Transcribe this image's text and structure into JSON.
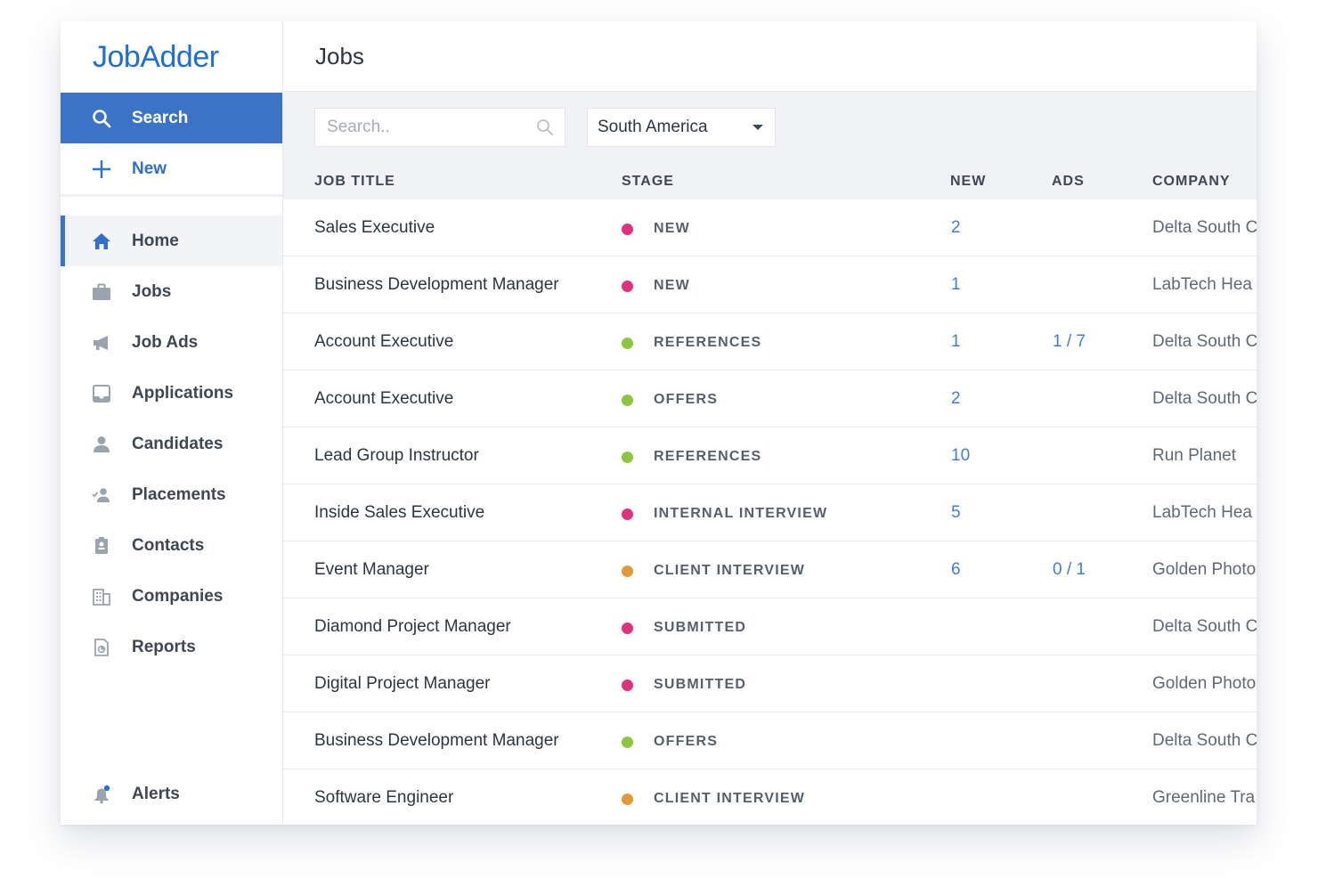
{
  "app": {
    "logo": "JobAdder"
  },
  "sidebar": {
    "search_label": "Search",
    "new_label": "New",
    "items": [
      {
        "label": "Home",
        "icon": "home-icon",
        "active": true
      },
      {
        "label": "Jobs",
        "icon": "briefcase-icon"
      },
      {
        "label": "Job Ads",
        "icon": "megaphone-icon"
      },
      {
        "label": "Applications",
        "icon": "inbox-icon"
      },
      {
        "label": "Candidates",
        "icon": "user-icon"
      },
      {
        "label": "Placements",
        "icon": "user-placed-icon"
      },
      {
        "label": "Contacts",
        "icon": "contact-card-icon"
      },
      {
        "label": "Companies",
        "icon": "building-icon"
      },
      {
        "label": "Reports",
        "icon": "report-icon"
      }
    ],
    "alerts_label": "Alerts"
  },
  "header": {
    "title": "Jobs"
  },
  "toolbar": {
    "search_placeholder": "Search..",
    "region_value": "South America"
  },
  "table": {
    "columns": {
      "job_title": "JOB TITLE",
      "stage": "STAGE",
      "new": "NEW",
      "ads": "ADS",
      "company": "COMPANY"
    },
    "rows": [
      {
        "title": "Sales Executive",
        "stage": "NEW",
        "stage_color": "#e0327d",
        "new": "2",
        "ads": "",
        "company": "Delta South C"
      },
      {
        "title": "Business Development Manager",
        "stage": "NEW",
        "stage_color": "#e0327d",
        "new": "1",
        "ads": "",
        "company": "LabTech Hea"
      },
      {
        "title": "Account Executive",
        "stage": "REFERENCES",
        "stage_color": "#8cc63f",
        "new": "1",
        "ads": "1 / 7",
        "company": "Delta South C"
      },
      {
        "title": "Account Executive",
        "stage": "OFFERS",
        "stage_color": "#8cc63f",
        "new": "2",
        "ads": "",
        "company": "Delta South C"
      },
      {
        "title": "Lead Group Instructor",
        "stage": "REFERENCES",
        "stage_color": "#8cc63f",
        "new": "10",
        "ads": "",
        "company": "Run Planet"
      },
      {
        "title": "Inside Sales Executive",
        "stage": "INTERNAL INTERVIEW",
        "stage_color": "#e0327d",
        "new": "5",
        "ads": "",
        "company": "LabTech Hea"
      },
      {
        "title": "Event Manager",
        "stage": "CLIENT INTERVIEW",
        "stage_color": "#e09a3a",
        "new": "6",
        "ads": "0 / 1",
        "company": "Golden Photo"
      },
      {
        "title": "Diamond Project Manager",
        "stage": "SUBMITTED",
        "stage_color": "#e0327d",
        "new": "",
        "ads": "",
        "company": "Delta South C"
      },
      {
        "title": "Digital Project Manager",
        "stage": "SUBMITTED",
        "stage_color": "#e0327d",
        "new": "",
        "ads": "",
        "company": "Golden Photo"
      },
      {
        "title": "Business Development Manager",
        "stage": "OFFERS",
        "stage_color": "#8cc63f",
        "new": "",
        "ads": "",
        "company": "Delta South C"
      },
      {
        "title": "Software Engineer",
        "stage": "CLIENT INTERVIEW",
        "stage_color": "#e09a3a",
        "new": "",
        "ads": "",
        "company": "Greenline Tra"
      }
    ]
  },
  "colors": {
    "brand": "#1d6ed8",
    "sidebar_active": "#3b73c6",
    "link": "#3d7fd6"
  }
}
